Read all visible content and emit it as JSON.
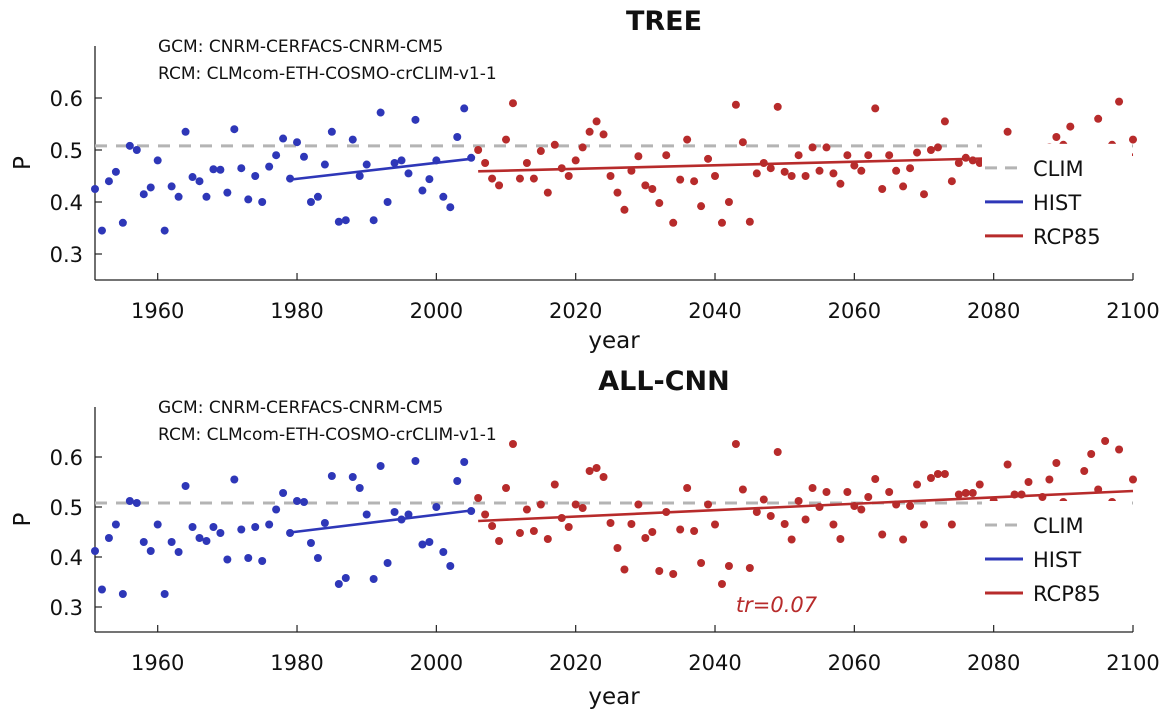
{
  "colors": {
    "hist": "#2e37b8",
    "rcp": "#b72b2b",
    "clim": "#b4b4b4",
    "axis": "#222222"
  },
  "chart_data": [
    {
      "type": "scatter",
      "title": "TREE",
      "info_lines": [
        "GCM: CNRM-CERFACS-CNRM-CM5",
        "RCM: CLMcom-ETH-COSMO-crCLIM-v1-1"
      ],
      "xlabel": "year",
      "ylabel": "P",
      "xlim": [
        1951,
        2100
      ],
      "ylim": [
        0.25,
        0.7
      ],
      "xticks": [
        1960,
        1980,
        2000,
        2020,
        2040,
        2060,
        2080,
        2100
      ],
      "yticks": [
        0.3,
        0.4,
        0.5,
        0.6
      ],
      "grid": false,
      "legend_position": "right",
      "legend": [
        "CLIM",
        "HIST",
        "RCP85"
      ],
      "clim": 0.508,
      "annotation": "",
      "series": [
        {
          "name": "HIST",
          "x": [
            1951,
            1952,
            1953,
            1954,
            1955,
            1956,
            1957,
            1958,
            1959,
            1960,
            1961,
            1962,
            1963,
            1964,
            1965,
            1966,
            1967,
            1968,
            1969,
            1970,
            1971,
            1972,
            1973,
            1974,
            1975,
            1976,
            1977,
            1978,
            1979,
            1980,
            1981,
            1982,
            1983,
            1984,
            1985,
            1986,
            1987,
            1988,
            1989,
            1990,
            1991,
            1992,
            1993,
            1994,
            1995,
            1996,
            1997,
            1998,
            1999,
            2000,
            2001,
            2002,
            2003,
            2004,
            2005
          ],
          "y": [
            0.425,
            0.345,
            0.44,
            0.458,
            0.36,
            0.508,
            0.5,
            0.415,
            0.428,
            0.48,
            0.345,
            0.43,
            0.41,
            0.535,
            0.448,
            0.44,
            0.41,
            0.463,
            0.462,
            0.418,
            0.54,
            0.465,
            0.405,
            0.45,
            0.4,
            0.468,
            0.49,
            0.522,
            0.445,
            0.515,
            0.487,
            0.4,
            0.41,
            0.472,
            0.535,
            0.362,
            0.365,
            0.52,
            0.45,
            0.472,
            0.365,
            0.572,
            0.4,
            0.475,
            0.48,
            0.455,
            0.558,
            0.422,
            0.444,
            0.48,
            0.41,
            0.39,
            0.525,
            0.58,
            0.485
          ],
          "trend": [
            [
              1979,
              0.443
            ],
            [
              2005,
              0.483
            ]
          ]
        },
        {
          "name": "RCP85",
          "x": [
            2006,
            2007,
            2008,
            2009,
            2010,
            2011,
            2012,
            2013,
            2014,
            2015,
            2016,
            2017,
            2018,
            2019,
            2020,
            2021,
            2022,
            2023,
            2024,
            2025,
            2026,
            2027,
            2028,
            2029,
            2030,
            2031,
            2032,
            2033,
            2034,
            2035,
            2036,
            2037,
            2038,
            2039,
            2040,
            2041,
            2042,
            2043,
            2044,
            2045,
            2046,
            2047,
            2048,
            2049,
            2050,
            2051,
            2052,
            2053,
            2054,
            2055,
            2056,
            2057,
            2058,
            2059,
            2060,
            2061,
            2062,
            2063,
            2064,
            2065,
            2066,
            2067,
            2068,
            2069,
            2070,
            2071,
            2072,
            2073,
            2074,
            2075,
            2076,
            2077,
            2078,
            2079,
            2080,
            2081,
            2082,
            2083,
            2084,
            2085,
            2086,
            2087,
            2088,
            2089,
            2090,
            2091,
            2092,
            2093,
            2094,
            2095,
            2096,
            2097,
            2098,
            2099,
            2100
          ],
          "y": [
            0.5,
            0.475,
            0.445,
            0.432,
            0.52,
            0.59,
            0.445,
            0.475,
            0.445,
            0.498,
            0.418,
            0.51,
            0.465,
            0.45,
            0.48,
            0.505,
            0.535,
            0.555,
            0.53,
            0.45,
            0.418,
            0.385,
            0.46,
            0.488,
            0.432,
            0.425,
            0.398,
            0.49,
            0.36,
            0.443,
            0.52,
            0.44,
            0.392,
            0.483,
            0.45,
            0.36,
            0.4,
            0.587,
            0.515,
            0.362,
            0.455,
            0.475,
            0.465,
            0.583,
            0.458,
            0.45,
            0.49,
            0.45,
            0.505,
            0.46,
            0.505,
            0.455,
            0.435,
            0.49,
            0.47,
            0.46,
            0.49,
            0.58,
            0.425,
            0.49,
            0.46,
            0.43,
            0.465,
            0.495,
            0.415,
            0.5,
            0.505,
            0.555,
            0.44,
            0.475,
            0.485,
            0.48,
            0.475,
            0.475,
            0.48,
            0.455,
            0.535,
            0.48,
            0.47,
            0.475,
            0.43,
            0.48,
            0.505,
            0.525,
            0.51,
            0.545,
            0.5,
            0.49,
            0.475,
            0.56,
            0.49,
            0.51,
            0.593,
            0.49,
            0.52
          ],
          "trend": [
            [
              2006,
              0.459
            ],
            [
              2100,
              0.491
            ]
          ]
        }
      ]
    },
    {
      "type": "scatter",
      "title": "ALL-CNN",
      "info_lines": [
        "GCM: CNRM-CERFACS-CNRM-CM5",
        "RCM: CLMcom-ETH-COSMO-crCLIM-v1-1"
      ],
      "xlabel": "year",
      "ylabel": "P",
      "xlim": [
        1951,
        2100
      ],
      "ylim": [
        0.25,
        0.7
      ],
      "xticks": [
        1960,
        1980,
        2000,
        2020,
        2040,
        2060,
        2080,
        2100
      ],
      "yticks": [
        0.3,
        0.4,
        0.5,
        0.6
      ],
      "grid": false,
      "legend_position": "right",
      "legend": [
        "CLIM",
        "HIST",
        "RCP85"
      ],
      "clim": 0.508,
      "annotation": "tr=0.07",
      "series": [
        {
          "name": "HIST",
          "x": [
            1951,
            1952,
            1953,
            1954,
            1955,
            1956,
            1957,
            1958,
            1959,
            1960,
            1961,
            1962,
            1963,
            1964,
            1965,
            1966,
            1967,
            1968,
            1969,
            1970,
            1971,
            1972,
            1973,
            1974,
            1975,
            1976,
            1977,
            1978,
            1979,
            1980,
            1981,
            1982,
            1983,
            1984,
            1985,
            1986,
            1987,
            1988,
            1989,
            1990,
            1991,
            1992,
            1993,
            1994,
            1995,
            1996,
            1997,
            1998,
            1999,
            2000,
            2001,
            2002,
            2003,
            2004,
            2005
          ],
          "y": [
            0.412,
            0.335,
            0.438,
            0.465,
            0.326,
            0.512,
            0.508,
            0.43,
            0.412,
            0.465,
            0.326,
            0.43,
            0.41,
            0.542,
            0.46,
            0.438,
            0.432,
            0.46,
            0.448,
            0.395,
            0.555,
            0.455,
            0.398,
            0.46,
            0.392,
            0.465,
            0.495,
            0.528,
            0.448,
            0.512,
            0.51,
            0.428,
            0.398,
            0.468,
            0.562,
            0.346,
            0.358,
            0.56,
            0.538,
            0.485,
            0.356,
            0.582,
            0.388,
            0.49,
            0.475,
            0.485,
            0.592,
            0.425,
            0.43,
            0.5,
            0.41,
            0.382,
            0.552,
            0.59,
            0.492
          ],
          "trend": [
            [
              1979,
              0.449
            ],
            [
              2005,
              0.493
            ]
          ]
        },
        {
          "name": "RCP85",
          "x": [
            2006,
            2007,
            2008,
            2009,
            2010,
            2011,
            2012,
            2013,
            2014,
            2015,
            2016,
            2017,
            2018,
            2019,
            2020,
            2021,
            2022,
            2023,
            2024,
            2025,
            2026,
            2027,
            2028,
            2029,
            2030,
            2031,
            2032,
            2033,
            2034,
            2035,
            2036,
            2037,
            2038,
            2039,
            2040,
            2041,
            2042,
            2043,
            2044,
            2045,
            2046,
            2047,
            2048,
            2049,
            2050,
            2051,
            2052,
            2053,
            2054,
            2055,
            2056,
            2057,
            2058,
            2059,
            2060,
            2061,
            2062,
            2063,
            2064,
            2065,
            2066,
            2067,
            2068,
            2069,
            2070,
            2071,
            2072,
            2073,
            2074,
            2075,
            2076,
            2077,
            2078,
            2079,
            2080,
            2081,
            2082,
            2083,
            2084,
            2085,
            2086,
            2087,
            2088,
            2089,
            2090,
            2091,
            2092,
            2093,
            2094,
            2095,
            2096,
            2097,
            2098,
            2099,
            2100
          ],
          "y": [
            0.518,
            0.485,
            0.462,
            0.432,
            0.538,
            0.626,
            0.448,
            0.495,
            0.452,
            0.505,
            0.436,
            0.545,
            0.478,
            0.46,
            0.505,
            0.498,
            0.572,
            0.578,
            0.56,
            0.468,
            0.418,
            0.375,
            0.466,
            0.505,
            0.438,
            0.45,
            0.372,
            0.49,
            0.366,
            0.455,
            0.538,
            0.452,
            0.388,
            0.505,
            0.465,
            0.346,
            0.382,
            0.626,
            0.535,
            0.378,
            0.49,
            0.515,
            0.482,
            0.61,
            0.466,
            0.435,
            0.512,
            0.475,
            0.538,
            0.5,
            0.53,
            0.465,
            0.436,
            0.53,
            0.502,
            0.495,
            0.52,
            0.556,
            0.445,
            0.53,
            0.505,
            0.435,
            0.502,
            0.545,
            0.465,
            0.558,
            0.566,
            0.566,
            0.465,
            0.525,
            0.528,
            0.528,
            0.545,
            0.5,
            0.512,
            0.48,
            0.585,
            0.525,
            0.525,
            0.55,
            0.46,
            0.52,
            0.555,
            0.588,
            0.51,
            0.47,
            0.5,
            0.572,
            0.606,
            0.535,
            0.632,
            0.51,
            0.615,
            0.485,
            0.555
          ],
          "trend": [
            [
              2006,
              0.472
            ],
            [
              2100,
              0.532
            ]
          ]
        }
      ]
    }
  ]
}
